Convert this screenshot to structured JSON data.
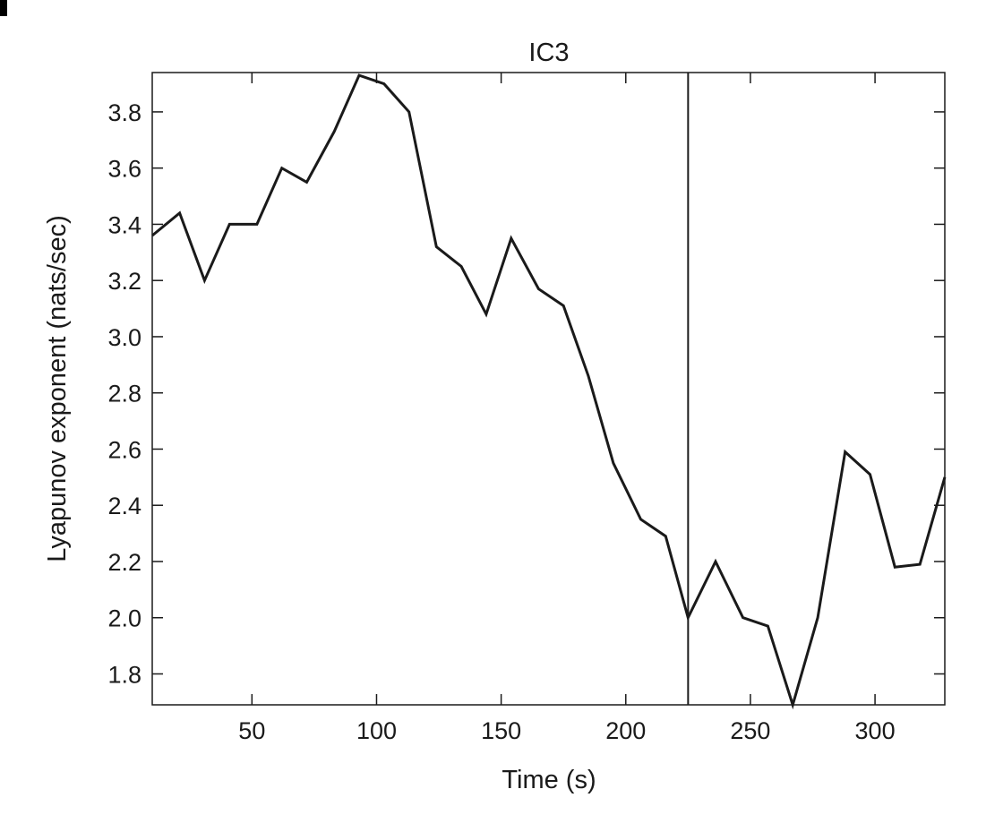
{
  "chart_data": {
    "type": "line",
    "title": "IC3",
    "xlabel": "Time (s)",
    "ylabel": "Lyapunov exponent (nats/sec)",
    "xlim": [
      10,
      328
    ],
    "ylim": [
      1.69,
      3.94
    ],
    "xticks": [
      50,
      100,
      150,
      200,
      250,
      300
    ],
    "yticks": [
      1.8,
      2.0,
      2.2,
      2.4,
      2.6,
      2.8,
      3.0,
      3.2,
      3.4,
      3.6,
      3.8
    ],
    "xtick_labels": [
      "50",
      "100",
      "150",
      "200",
      "250",
      "300"
    ],
    "ytick_labels": [
      "1.8",
      "2.0",
      "2.2",
      "2.4",
      "2.6",
      "2.8",
      "3.0",
      "3.2",
      "3.4",
      "3.6",
      "3.8"
    ],
    "vertical_line_x": 225,
    "grid": false,
    "series": [
      {
        "color": "#1a1a1a",
        "x": [
          10,
          21,
          31,
          41,
          52,
          62,
          72,
          83,
          93,
          103,
          113,
          124,
          134,
          144,
          154,
          165,
          175,
          185,
          195,
          206,
          216,
          225,
          236,
          247,
          257,
          267,
          277,
          288,
          298,
          308,
          318,
          328
        ],
        "y": [
          3.36,
          3.44,
          3.2,
          3.4,
          3.4,
          3.6,
          3.55,
          3.73,
          3.93,
          3.9,
          3.8,
          3.32,
          3.25,
          3.08,
          3.35,
          3.17,
          3.11,
          2.86,
          2.55,
          2.35,
          2.29,
          2.0,
          2.2,
          2.0,
          1.97,
          1.69,
          2.0,
          2.59,
          2.51,
          2.18,
          2.19,
          2.5
        ]
      }
    ]
  }
}
